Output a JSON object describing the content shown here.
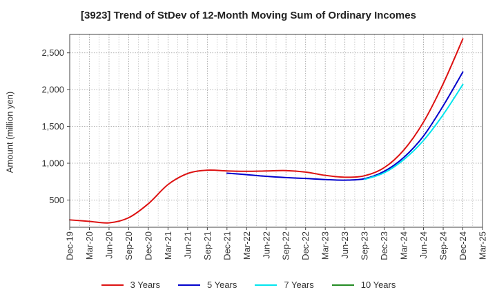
{
  "chart_data": {
    "type": "line",
    "title": "[3923]  Trend of StDev of 12-Month Moving Sum of Ordinary Incomes",
    "xlabel": "",
    "ylabel": "Amount (million yen)",
    "categories": [
      "Dec-19",
      "Mar-20",
      "Jun-20",
      "Sep-20",
      "Dec-20",
      "Mar-21",
      "Jun-21",
      "Sep-21",
      "Dec-21",
      "Mar-22",
      "Jun-22",
      "Sep-22",
      "Dec-22",
      "Mar-23",
      "Jun-23",
      "Sep-23",
      "Dec-23",
      "Mar-24",
      "Jun-24",
      "Sep-24",
      "Dec-24",
      "Mar-25"
    ],
    "ylim": [
      130,
      2750
    ],
    "yticks": [
      500,
      1000,
      1500,
      2000,
      2500
    ],
    "ytick_labels": [
      "500",
      "1,000",
      "1,500",
      "2,000",
      "2,500"
    ],
    "grid": true,
    "legend_position": "bottom",
    "series": [
      {
        "name": "3 Years",
        "color": "#dd1111",
        "values": [
          230,
          210,
          190,
          260,
          450,
          710,
          860,
          905,
          895,
          890,
          895,
          900,
          880,
          835,
          810,
          830,
          940,
          1180,
          1560,
          2080,
          2690,
          null
        ]
      },
      {
        "name": "5 Years",
        "color": "#0000cc",
        "values": [
          null,
          null,
          null,
          null,
          null,
          null,
          null,
          null,
          865,
          845,
          822,
          805,
          793,
          778,
          770,
          790,
          890,
          1080,
          1370,
          1780,
          2240,
          null
        ]
      },
      {
        "name": "7 Years",
        "color": "#00e5ee",
        "values": [
          null,
          null,
          null,
          null,
          null,
          null,
          null,
          null,
          null,
          null,
          null,
          null,
          null,
          null,
          null,
          780,
          870,
          1050,
          1310,
          1660,
          2070,
          null
        ]
      },
      {
        "name": "10 Years",
        "color": "#228b22",
        "values": [
          null,
          null,
          null,
          null,
          null,
          null,
          null,
          null,
          null,
          null,
          null,
          null,
          null,
          null,
          null,
          null,
          null,
          null,
          null,
          null,
          null,
          null
        ]
      }
    ]
  }
}
